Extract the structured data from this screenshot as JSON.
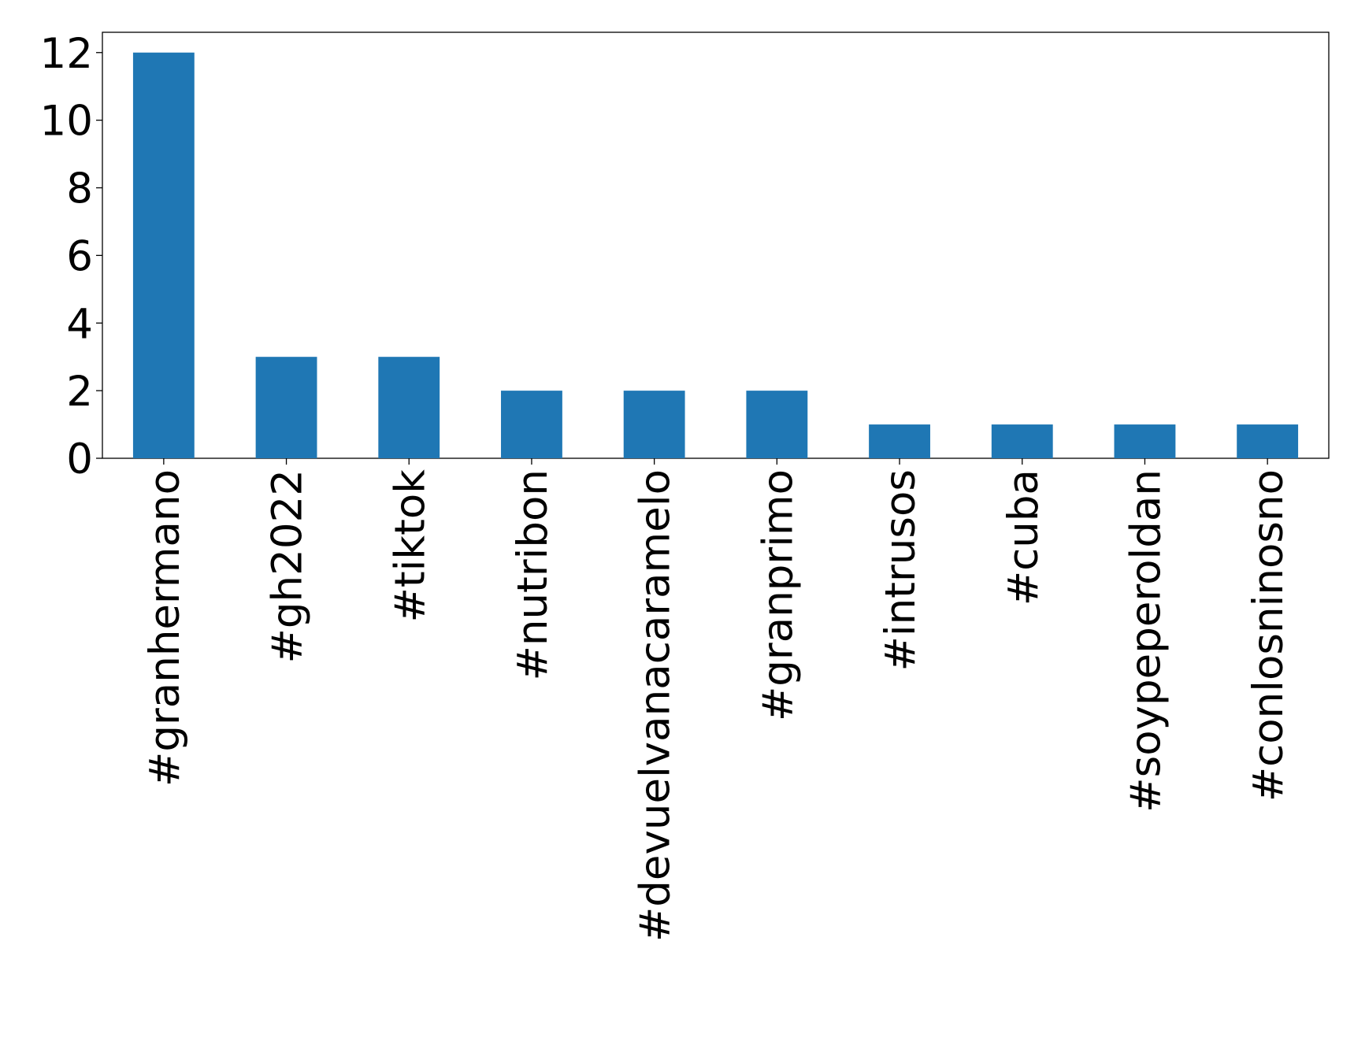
{
  "chart_data": {
    "type": "bar",
    "categories": [
      "#granhermano",
      "#gh2022",
      "#tiktok",
      "#nutribon",
      "#devuelvanacaramelo",
      "#granprimo",
      "#intrusos",
      "#cuba",
      "#soypeperoldan",
      "#conlosninosno"
    ],
    "values": [
      12,
      3,
      3,
      2,
      2,
      2,
      1,
      1,
      1,
      1
    ],
    "color": "#1f77b4",
    "ylim": [
      0,
      12.6
    ],
    "yticks": [
      0,
      2,
      4,
      6,
      8,
      10,
      12
    ],
    "grid": false
  }
}
